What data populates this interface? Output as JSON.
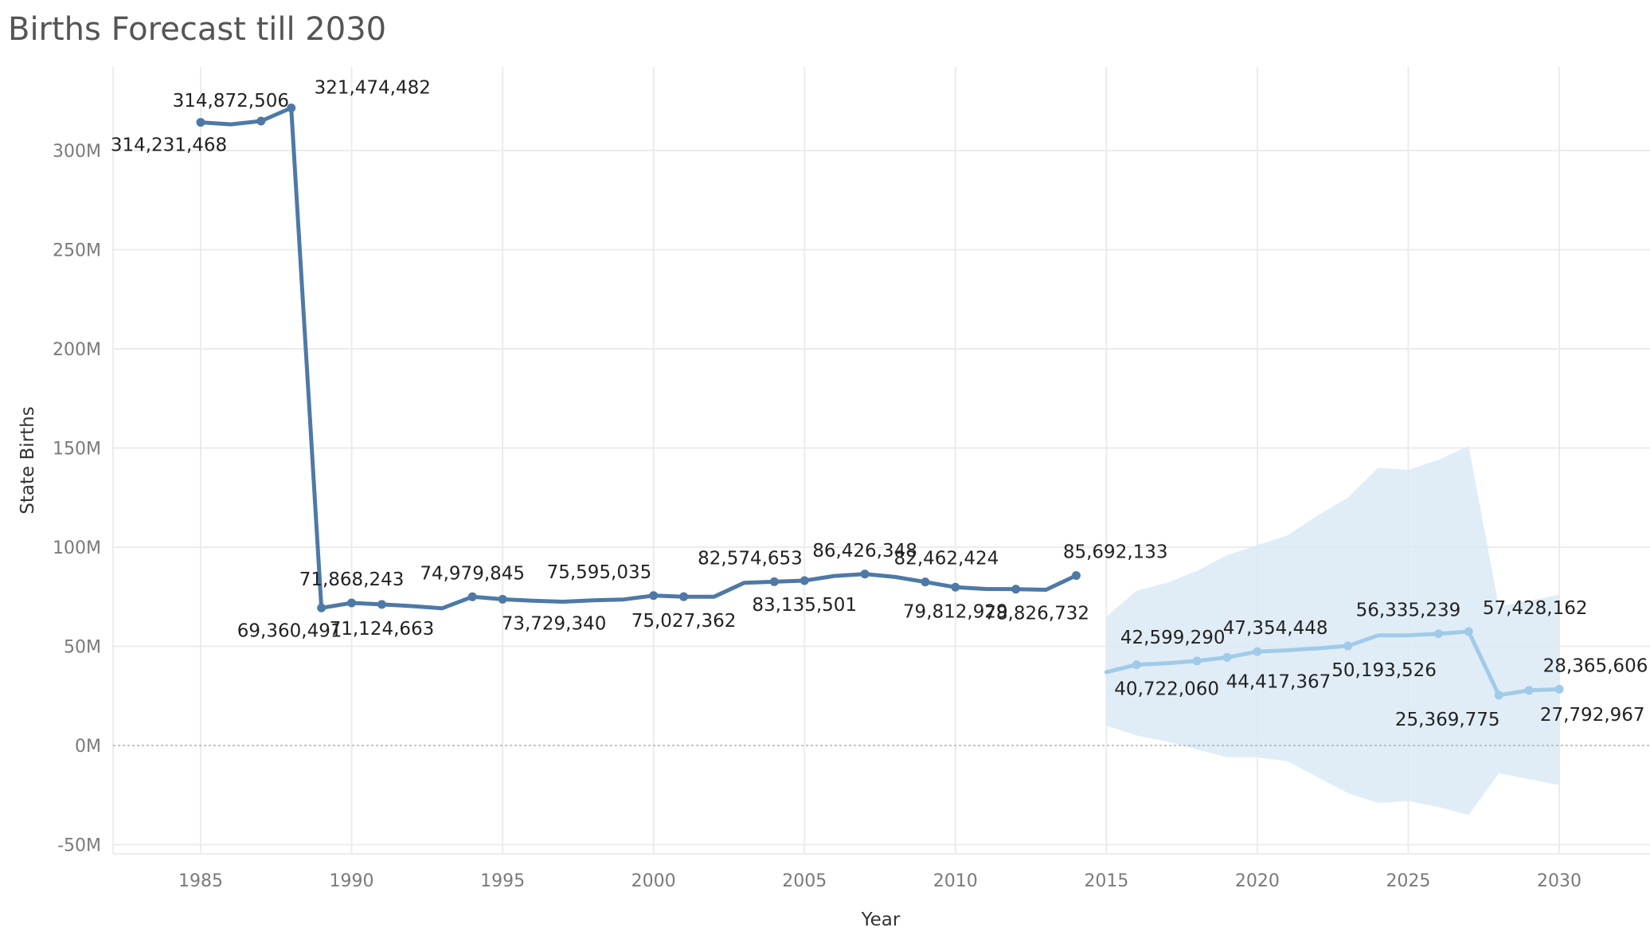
{
  "chart_data": {
    "type": "line",
    "title": "Births Forecast till 2030",
    "xlabel": "Year",
    "ylabel": "State Births",
    "xlim": [
      1982,
      2033
    ],
    "ylim": [
      -55,
      335
    ],
    "x_ticks": [
      "1985",
      "1990",
      "1995",
      "2000",
      "2005",
      "2010",
      "2015",
      "2020",
      "2025",
      "2030"
    ],
    "y_ticks": [
      "-50M",
      "0M",
      "50M",
      "100M",
      "150M",
      "200M",
      "250M",
      "300M"
    ],
    "grid": true,
    "colors": {
      "actual": "#4e79a7",
      "forecast": "#a0cbe8",
      "band": "#dbeaf6"
    },
    "series": [
      {
        "name": "",
        "role": "actual",
        "x": [
          1985,
          1986,
          1987,
          1988,
          1989,
          1990,
          1991,
          1992,
          1993,
          1994,
          1995,
          1996,
          1997,
          1998,
          1999,
          2000,
          2001,
          2002,
          2003,
          2004,
          2005,
          2006,
          2007,
          2008,
          2009,
          2010,
          2011,
          2012,
          2013,
          2014
        ],
        "y": [
          314.23,
          313.2,
          314.87,
          321.47,
          69.36,
          71.87,
          71.12,
          70.3,
          69.2,
          74.98,
          73.73,
          73.0,
          72.5,
          73.2,
          73.6,
          75.6,
          75.03,
          75.0,
          82.0,
          82.57,
          83.14,
          85.5,
          86.43,
          85.0,
          82.46,
          79.81,
          78.9,
          78.83,
          78.5,
          85.69
        ],
        "markers": [
          1985,
          1987,
          1988,
          1989,
          1990,
          1991,
          1994,
          1995,
          2000,
          2001,
          2004,
          2005,
          2007,
          2009,
          2010,
          2012,
          2014
        ]
      },
      {
        "name": "",
        "role": "forecast",
        "x": [
          2015,
          2016,
          2017,
          2018,
          2019,
          2020,
          2021,
          2022,
          2023,
          2024,
          2025,
          2026,
          2027,
          2028,
          2029,
          2030
        ],
        "y": [
          37.0,
          40.72,
          41.5,
          42.6,
          44.42,
          47.35,
          48.0,
          49.0,
          50.19,
          55.5,
          55.6,
          56.34,
          57.43,
          25.37,
          27.79,
          28.37
        ],
        "markers": [
          2016,
          2018,
          2019,
          2020,
          2023,
          2026,
          2027,
          2028,
          2029,
          2030
        ]
      }
    ],
    "band": {
      "x": [
        2015,
        2016,
        2017,
        2018,
        2019,
        2020,
        2021,
        2022,
        2023,
        2024,
        2025,
        2026,
        2027,
        2028,
        2029,
        2030
      ],
      "upper": [
        65,
        78,
        82,
        88,
        96,
        101,
        106,
        116,
        125,
        140,
        139,
        144,
        151,
        70,
        73,
        76
      ],
      "lower": [
        10,
        5,
        2,
        -2,
        -6,
        -6,
        -8,
        -16,
        -24,
        -29,
        -28,
        -31,
        -35,
        -14,
        -17,
        -20
      ]
    },
    "data_labels": [
      {
        "text": "314,231,468",
        "x": 1985,
        "y": 314.23,
        "pos": "below-left"
      },
      {
        "text": "314,872,506",
        "x": 1987,
        "y": 314.87,
        "pos": "above-left"
      },
      {
        "text": "321,474,482",
        "x": 1988,
        "y": 321.47,
        "pos": "above-right"
      },
      {
        "text": "69,360,491",
        "x": 1989,
        "y": 69.36,
        "pos": "below-left"
      },
      {
        "text": "71,868,243",
        "x": 1990,
        "y": 71.87,
        "pos": "above"
      },
      {
        "text": "71,124,663",
        "x": 1991,
        "y": 71.12,
        "pos": "below"
      },
      {
        "text": "74,979,845",
        "x": 1994,
        "y": 74.98,
        "pos": "above"
      },
      {
        "text": "73,729,340",
        "x": 1996.7,
        "y": 73.73,
        "pos": "below"
      },
      {
        "text": "75,595,035",
        "x": 1998.2,
        "y": 75.6,
        "pos": "above"
      },
      {
        "text": "75,027,362",
        "x": 2001,
        "y": 75.03,
        "pos": "below"
      },
      {
        "text": "82,574,653",
        "x": 2003.2,
        "y": 82.57,
        "pos": "above"
      },
      {
        "text": "83,135,501",
        "x": 2005,
        "y": 83.14,
        "pos": "below"
      },
      {
        "text": "86,426,348",
        "x": 2007,
        "y": 86.43,
        "pos": "above"
      },
      {
        "text": "82,462,424",
        "x": 2009.7,
        "y": 82.46,
        "pos": "above"
      },
      {
        "text": "79,812,929",
        "x": 2010,
        "y": 79.81,
        "pos": "below"
      },
      {
        "text": "78,826,732",
        "x": 2012.7,
        "y": 78.83,
        "pos": "below"
      },
      {
        "text": "85,692,133",
        "x": 2015.3,
        "y": 85.69,
        "pos": "above"
      },
      {
        "text": "42,599,290",
        "x": 2017.2,
        "y": 42.6,
        "pos": "above"
      },
      {
        "text": "40,722,060",
        "x": 2017,
        "y": 40.72,
        "pos": "below"
      },
      {
        "text": "47,354,448",
        "x": 2020.6,
        "y": 47.35,
        "pos": "above"
      },
      {
        "text": "44,417,367",
        "x": 2020.7,
        "y": 44.42,
        "pos": "below"
      },
      {
        "text": "56,335,239",
        "x": 2025,
        "y": 56.34,
        "pos": "above"
      },
      {
        "text": "50,193,526",
        "x": 2024.2,
        "y": 50.19,
        "pos": "below"
      },
      {
        "text": "57,428,162",
        "x": 2029.2,
        "y": 57.43,
        "pos": "above"
      },
      {
        "text": "25,369,775",
        "x": 2026.3,
        "y": 25.37,
        "pos": "below"
      },
      {
        "text": "27,792,967",
        "x": 2031.1,
        "y": 27.79,
        "pos": "below"
      },
      {
        "text": "28,365,606",
        "x": 2031.2,
        "y": 28.37,
        "pos": "above"
      }
    ]
  }
}
